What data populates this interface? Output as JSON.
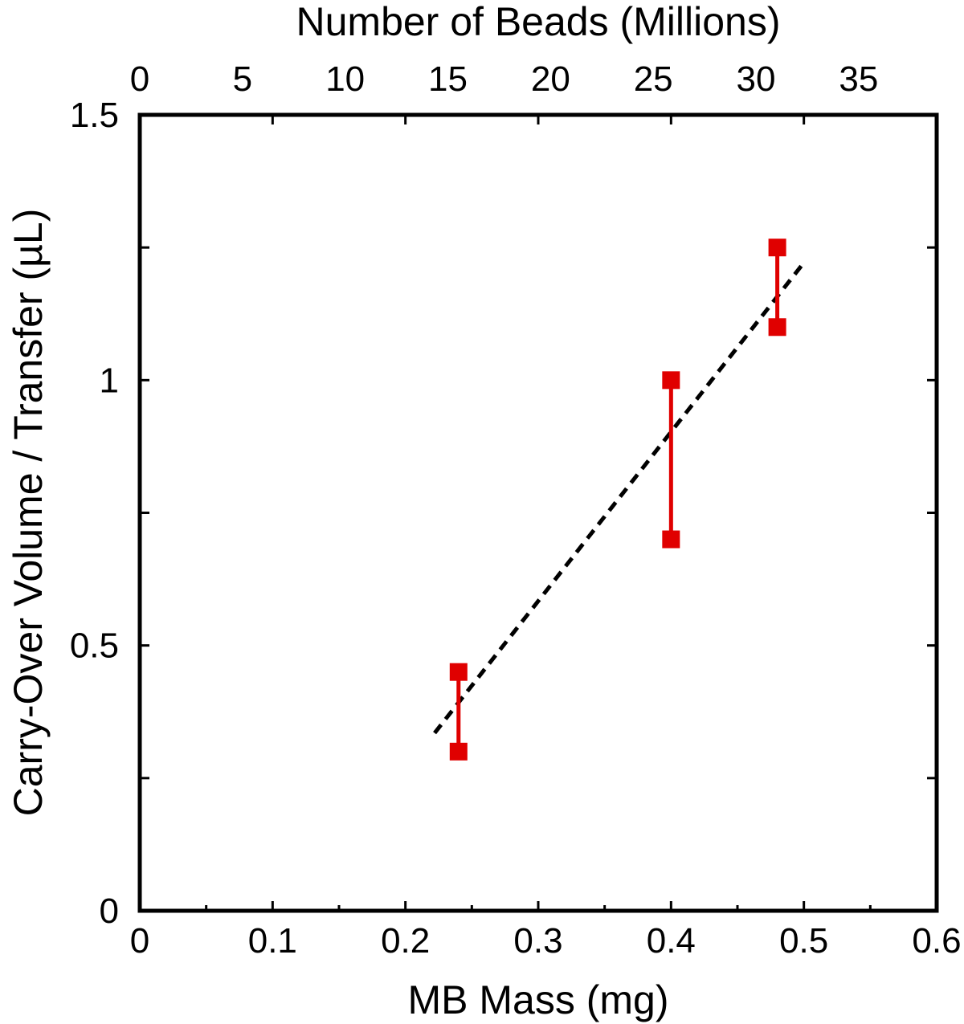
{
  "chart_data": {
    "type": "scatter",
    "xlabel": "MB Mass (mg)",
    "x2label": "Number of Beads (Millions)",
    "ylabel": "Carry-Over Volume / Transfer (µL)",
    "xlim": [
      0,
      0.6
    ],
    "x2lim": [
      0,
      38.8
    ],
    "ylim": [
      0,
      1.5
    ],
    "x_ticks": [
      0,
      0.1,
      0.2,
      0.3,
      0.4,
      0.5,
      0.6
    ],
    "x_tick_labels": [
      "0",
      "0.1",
      "0.2",
      "0.3",
      "0.4",
      "0.5",
      "0.6"
    ],
    "x2_ticks": [
      0,
      5,
      10,
      15,
      20,
      25,
      30,
      35
    ],
    "x2_tick_labels": [
      "0",
      "5",
      "10",
      "15",
      "20",
      "25",
      "30",
      "35"
    ],
    "y_ticks": [
      0,
      0.5,
      1,
      1.5
    ],
    "y_tick_labels": [
      "0",
      "0.5",
      "1",
      "1.5"
    ],
    "series": [
      {
        "type": "range",
        "color": "#e00000",
        "points": [
          {
            "x": 0.24,
            "low": 0.3,
            "high": 0.45
          },
          {
            "x": 0.4,
            "low": 0.7,
            "high": 1.0
          },
          {
            "x": 0.48,
            "low": 1.1,
            "high": 1.25
          }
        ]
      },
      {
        "type": "fit-line",
        "style": "dashed",
        "color": "#000000",
        "x": [
          0.222,
          0.498
        ],
        "y": [
          0.335,
          1.215
        ]
      }
    ],
    "grid": false,
    "legend": "none"
  }
}
